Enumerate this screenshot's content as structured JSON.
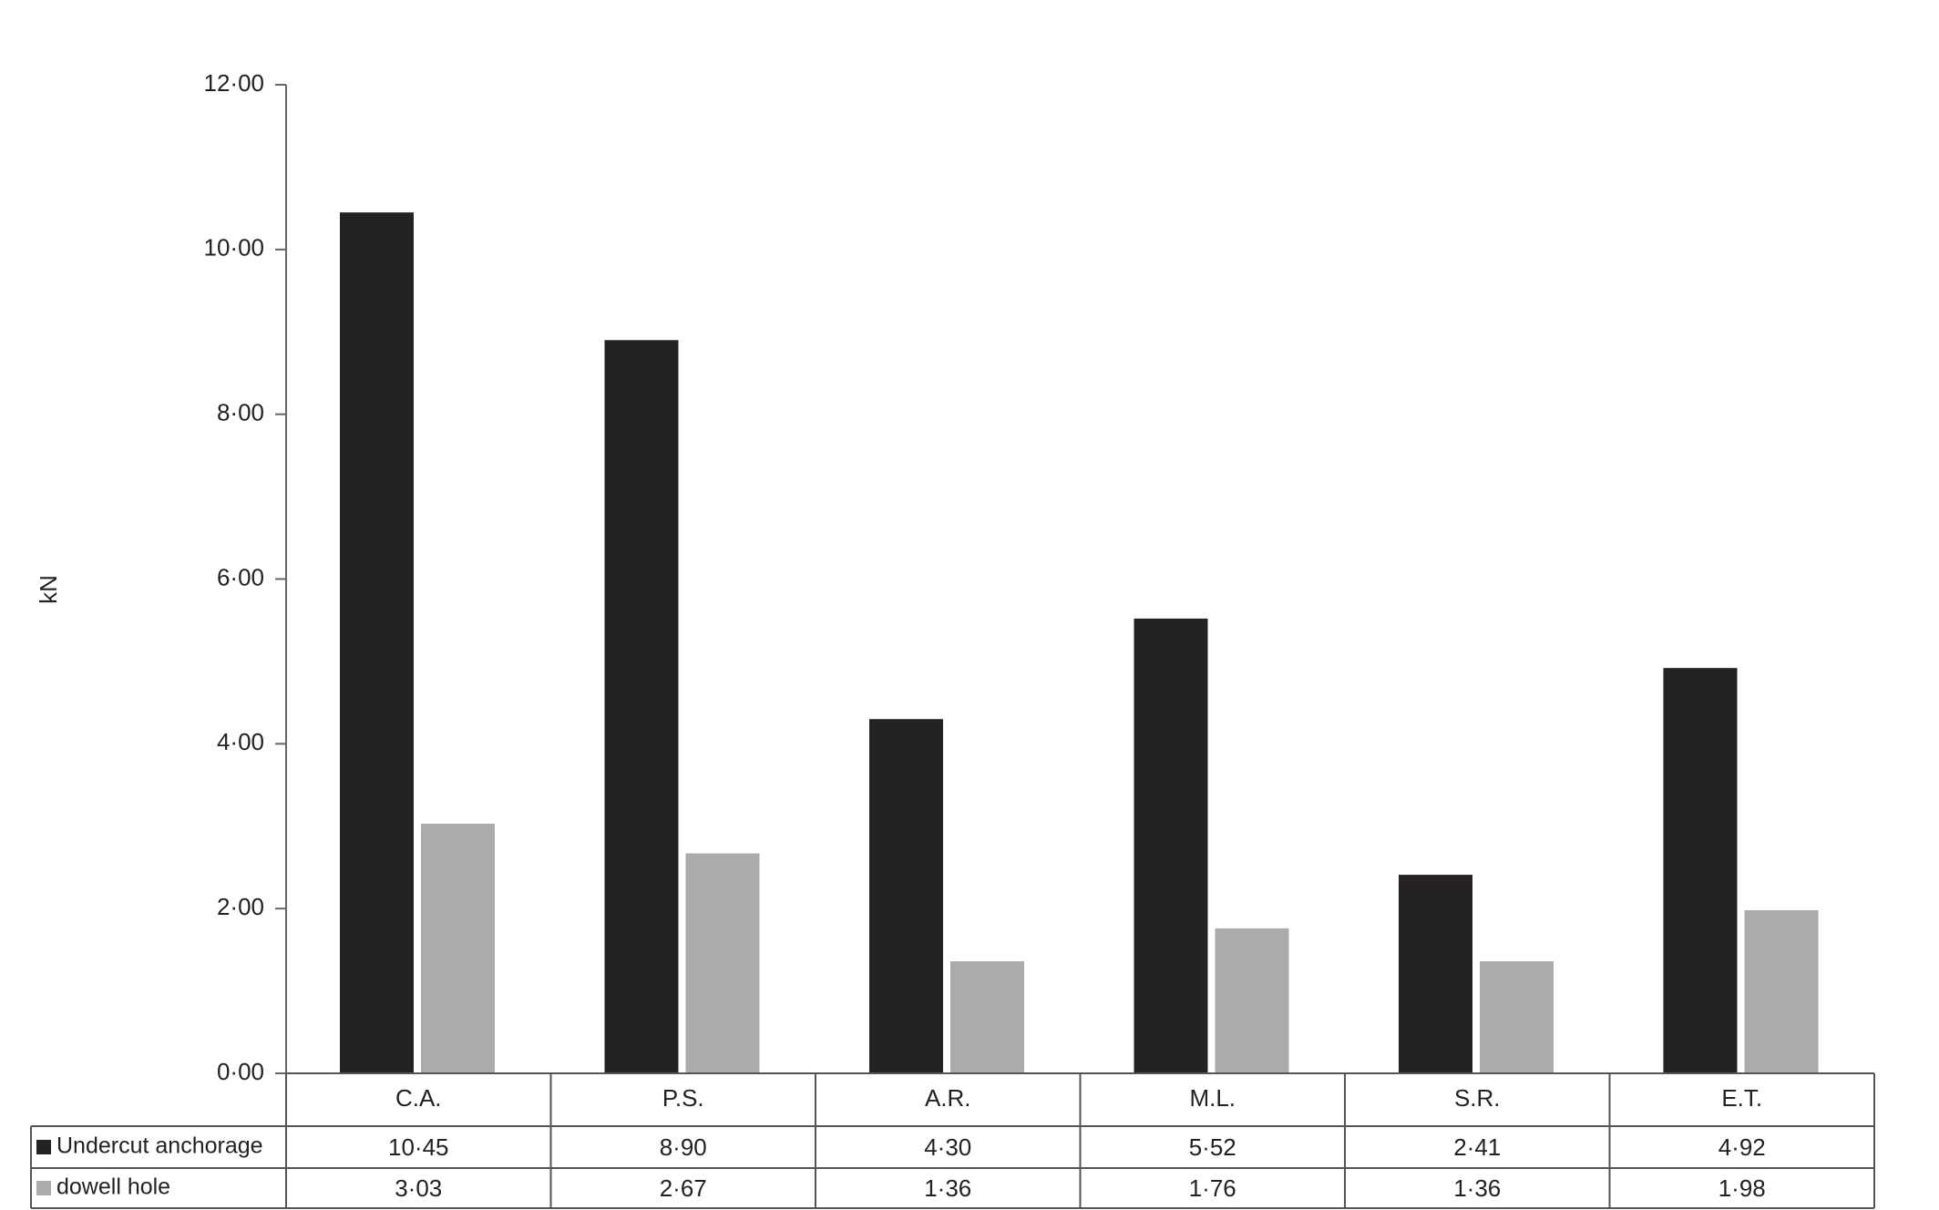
{
  "chart_data": {
    "type": "bar",
    "y_label": "kN",
    "categories": [
      "C.A.",
      "P.S.",
      "A.R.",
      "M.L.",
      "S.R.",
      "E.T."
    ],
    "series": [
      {
        "name": "Undercut anchorage",
        "color": "#252222",
        "values": [
          10.45,
          8.9,
          4.3,
          5.52,
          2.41,
          4.92
        ],
        "value_labels": [
          "10·45",
          "8·90",
          "4·30",
          "5·52",
          "2·41",
          "4·92"
        ]
      },
      {
        "name": "dowell hole",
        "color": "#ababab",
        "values": [
          3.03,
          2.67,
          1.36,
          1.76,
          1.36,
          1.98
        ],
        "value_labels": [
          "3·03",
          "2·67",
          "1·36",
          "1·76",
          "1·36",
          "1·98"
        ]
      }
    ],
    "ylim": [
      0,
      12
    ],
    "yticks": [
      {
        "value": 0,
        "label": "0·00"
      },
      {
        "value": 2,
        "label": "2·00"
      },
      {
        "value": 4,
        "label": "4·00"
      },
      {
        "value": 6,
        "label": "6·00"
      },
      {
        "value": 8,
        "label": "8·00"
      },
      {
        "value": 10,
        "label": "10·00"
      },
      {
        "value": 12,
        "label": "12·00"
      }
    ]
  }
}
